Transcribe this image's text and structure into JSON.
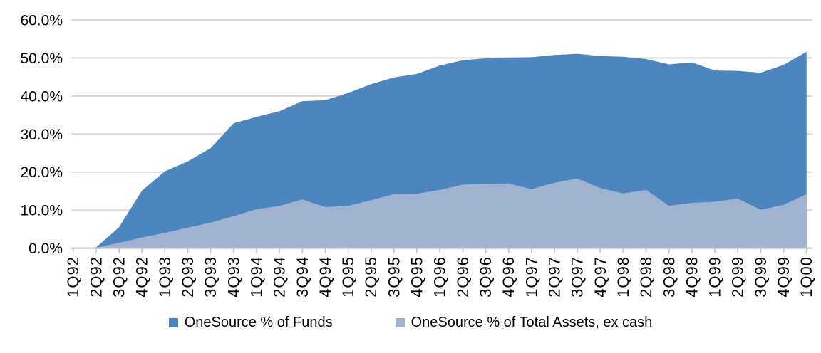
{
  "chart_data": {
    "type": "area",
    "title": "",
    "categories": [
      "1Q92",
      "2Q92",
      "3Q92",
      "4Q92",
      "1Q93",
      "2Q93",
      "3Q93",
      "4Q93",
      "1Q94",
      "2Q94",
      "3Q94",
      "4Q94",
      "1Q95",
      "2Q95",
      "3Q95",
      "4Q95",
      "1Q96",
      "2Q96",
      "3Q96",
      "4Q96",
      "1Q97",
      "2Q97",
      "3Q97",
      "4Q97",
      "1Q98",
      "2Q98",
      "3Q98",
      "4Q98",
      "1Q99",
      "2Q99",
      "3Q99",
      "4Q99",
      "1Q00"
    ],
    "series": [
      {
        "name": "OneSource % of Funds",
        "color": "#4D86BE",
        "values": [
          0.0,
          0.2,
          5.5,
          15.1,
          20.2,
          22.8,
          26.3,
          32.8,
          34.5,
          36.0,
          38.6,
          38.9,
          40.8,
          43.1,
          44.9,
          45.8,
          48.0,
          49.4,
          49.9,
          50.1,
          50.2,
          50.8,
          51.1,
          50.5,
          50.3,
          49.7,
          48.3,
          48.8,
          46.7,
          46.6,
          46.1,
          48.2,
          51.6
        ]
      },
      {
        "name": "OneSource % of Total Assets, ex cash",
        "color": "#A1B1D0",
        "values": [
          0.0,
          0.1,
          1.4,
          2.8,
          4.0,
          5.4,
          6.7,
          8.4,
          10.2,
          11.1,
          12.8,
          10.8,
          11.1,
          12.6,
          14.2,
          14.3,
          15.3,
          16.7,
          16.9,
          17.0,
          15.5,
          17.2,
          18.3,
          15.8,
          14.4,
          15.3,
          11.1,
          11.9,
          12.2,
          13.0,
          10.1,
          11.4,
          14.2
        ]
      }
    ],
    "xlabel": "",
    "ylabel": "",
    "ylim": [
      0,
      60
    ],
    "ytick_step": 10,
    "y_tick_labels": [
      "0.0%",
      "10.0%",
      "20.0%",
      "30.0%",
      "40.0%",
      "50.0%",
      "60.0%"
    ],
    "grid": true,
    "legend_position": "bottom",
    "gridline_color": "#D9D9D9",
    "axis_color": "#BFBFBF",
    "text_color": "#000000"
  }
}
